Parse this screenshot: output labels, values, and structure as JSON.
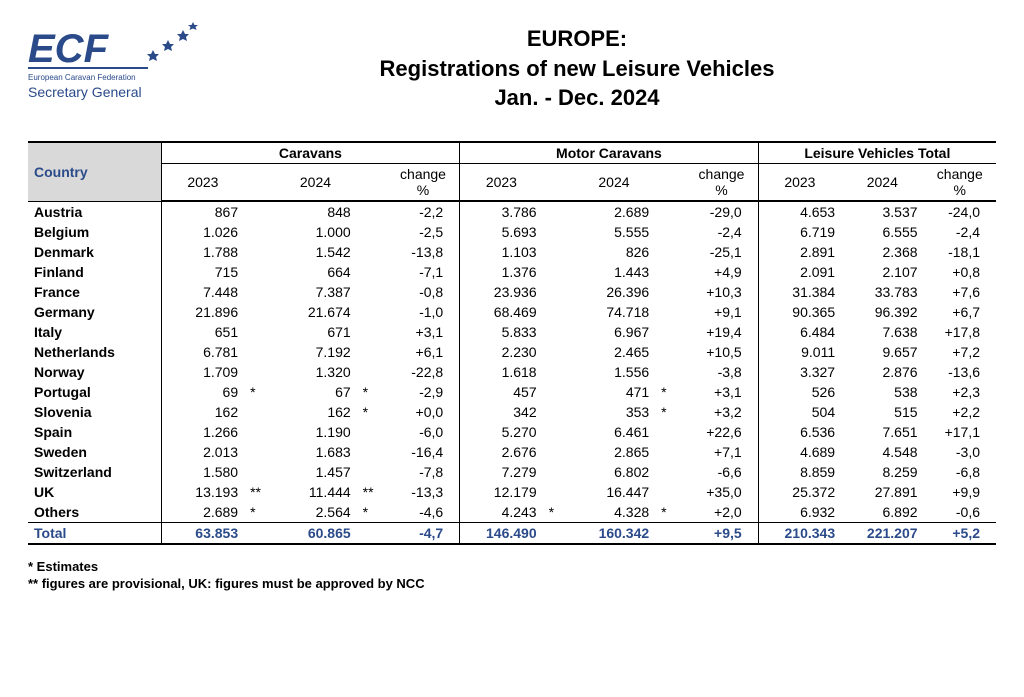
{
  "logo": {
    "text": "ECF",
    "subtitle": "European Caravan Federation",
    "role": "Secretary General",
    "main_color": "#2a4a8a",
    "star_color": "#2a4a8a"
  },
  "title": {
    "l1": "EUROPE:",
    "l2": "Registrations of new Leisure Vehicles",
    "l3": "Jan. - Dec. 2024"
  },
  "table": {
    "country_label": "Country",
    "groups": [
      "Caravans",
      "Motor Caravans",
      "Leisure Vehicles Total"
    ],
    "sub_years": [
      "2023",
      "2024"
    ],
    "change_label_top": "change",
    "change_label_bot": "%",
    "rows": [
      {
        "country": "Austria",
        "c23": "867",
        "c23m": "",
        "c24": "848",
        "c24m": "",
        "cch": "-2,2",
        "m23": "3.786",
        "m23m": "",
        "m24": "2.689",
        "m24m": "",
        "mch": "-29,0",
        "t23": "4.653",
        "t24": "3.537",
        "tch": "-24,0"
      },
      {
        "country": "Belgium",
        "c23": "1.026",
        "c23m": "",
        "c24": "1.000",
        "c24m": "",
        "cch": "-2,5",
        "m23": "5.693",
        "m23m": "",
        "m24": "5.555",
        "m24m": "",
        "mch": "-2,4",
        "t23": "6.719",
        "t24": "6.555",
        "tch": "-2,4"
      },
      {
        "country": "Denmark",
        "c23": "1.788",
        "c23m": "",
        "c24": "1.542",
        "c24m": "",
        "cch": "-13,8",
        "m23": "1.103",
        "m23m": "",
        "m24": "826",
        "m24m": "",
        "mch": "-25,1",
        "t23": "2.891",
        "t24": "2.368",
        "tch": "-18,1"
      },
      {
        "country": "Finland",
        "c23": "715",
        "c23m": "",
        "c24": "664",
        "c24m": "",
        "cch": "-7,1",
        "m23": "1.376",
        "m23m": "",
        "m24": "1.443",
        "m24m": "",
        "mch": "+4,9",
        "t23": "2.091",
        "t24": "2.107",
        "tch": "+0,8"
      },
      {
        "country": "France",
        "c23": "7.448",
        "c23m": "",
        "c24": "7.387",
        "c24m": "",
        "cch": "-0,8",
        "m23": "23.936",
        "m23m": "",
        "m24": "26.396",
        "m24m": "",
        "mch": "+10,3",
        "t23": "31.384",
        "t24": "33.783",
        "tch": "+7,6"
      },
      {
        "country": "Germany",
        "c23": "21.896",
        "c23m": "",
        "c24": "21.674",
        "c24m": "",
        "cch": "-1,0",
        "m23": "68.469",
        "m23m": "",
        "m24": "74.718",
        "m24m": "",
        "mch": "+9,1",
        "t23": "90.365",
        "t24": "96.392",
        "tch": "+6,7"
      },
      {
        "country": "Italy",
        "c23": "651",
        "c23m": "",
        "c24": "671",
        "c24m": "",
        "cch": "+3,1",
        "m23": "5.833",
        "m23m": "",
        "m24": "6.967",
        "m24m": "",
        "mch": "+19,4",
        "t23": "6.484",
        "t24": "7.638",
        "tch": "+17,8"
      },
      {
        "country": "Netherlands",
        "c23": "6.781",
        "c23m": "",
        "c24": "7.192",
        "c24m": "",
        "cch": "+6,1",
        "m23": "2.230",
        "m23m": "",
        "m24": "2.465",
        "m24m": "",
        "mch": "+10,5",
        "t23": "9.011",
        "t24": "9.657",
        "tch": "+7,2"
      },
      {
        "country": "Norway",
        "c23": "1.709",
        "c23m": "",
        "c24": "1.320",
        "c24m": "",
        "cch": "-22,8",
        "m23": "1.618",
        "m23m": "",
        "m24": "1.556",
        "m24m": "",
        "mch": "-3,8",
        "t23": "3.327",
        "t24": "2.876",
        "tch": "-13,6"
      },
      {
        "country": "Portugal",
        "c23": "69",
        "c23m": "*",
        "c24": "67",
        "c24m": "*",
        "cch": "-2,9",
        "m23": "457",
        "m23m": "",
        "m24": "471",
        "m24m": "*",
        "mch": "+3,1",
        "t23": "526",
        "t24": "538",
        "tch": "+2,3"
      },
      {
        "country": "Slovenia",
        "c23": "162",
        "c23m": "",
        "c24": "162",
        "c24m": "*",
        "cch": "+0,0",
        "m23": "342",
        "m23m": "",
        "m24": "353",
        "m24m": "*",
        "mch": "+3,2",
        "t23": "504",
        "t24": "515",
        "tch": "+2,2"
      },
      {
        "country": "Spain",
        "c23": "1.266",
        "c23m": "",
        "c24": "1.190",
        "c24m": "",
        "cch": "-6,0",
        "m23": "5.270",
        "m23m": "",
        "m24": "6.461",
        "m24m": "",
        "mch": "+22,6",
        "t23": "6.536",
        "t24": "7.651",
        "tch": "+17,1"
      },
      {
        "country": "Sweden",
        "c23": "2.013",
        "c23m": "",
        "c24": "1.683",
        "c24m": "",
        "cch": "-16,4",
        "m23": "2.676",
        "m23m": "",
        "m24": "2.865",
        "m24m": "",
        "mch": "+7,1",
        "t23": "4.689",
        "t24": "4.548",
        "tch": "-3,0"
      },
      {
        "country": "Switzerland",
        "c23": "1.580",
        "c23m": "",
        "c24": "1.457",
        "c24m": "",
        "cch": "-7,8",
        "m23": "7.279",
        "m23m": "",
        "m24": "6.802",
        "m24m": "",
        "mch": "-6,6",
        "t23": "8.859",
        "t24": "8.259",
        "tch": "-6,8"
      },
      {
        "country": "UK",
        "c23": "13.193",
        "c23m": "**",
        "c24": "11.444",
        "c24m": "**",
        "cch": "-13,3",
        "m23": "12.179",
        "m23m": "",
        "m24": "16.447",
        "m24m": "",
        "mch": "+35,0",
        "t23": "25.372",
        "t24": "27.891",
        "tch": "+9,9"
      },
      {
        "country": "Others",
        "c23": "2.689",
        "c23m": "*",
        "c24": "2.564",
        "c24m": "*",
        "cch": "-4,6",
        "m23": "4.243",
        "m23m": "*",
        "m24": "4.328",
        "m24m": "*",
        "mch": "+2,0",
        "t23": "6.932",
        "t24": "6.892",
        "tch": "-0,6"
      }
    ],
    "total": {
      "country": "Total",
      "c23": "63.853",
      "c24": "60.865",
      "cch": "-4,7",
      "m23": "146.490",
      "m24": "160.342",
      "mch": "+9,5",
      "t23": "210.343",
      "t24": "221.207",
      "tch": "+5,2"
    }
  },
  "footnotes": {
    "a": "*   Estimates",
    "b": "** figures are provisional, UK: figures must be approved by NCC"
  },
  "style": {
    "page_bg": "#ffffff",
    "text_color": "#000000",
    "accent_color": "#2a4a8a",
    "header_bg": "#d9d9d9",
    "border_thick": 2,
    "border_thin": 1,
    "font_size_body": 14,
    "font_size_title": 22
  }
}
